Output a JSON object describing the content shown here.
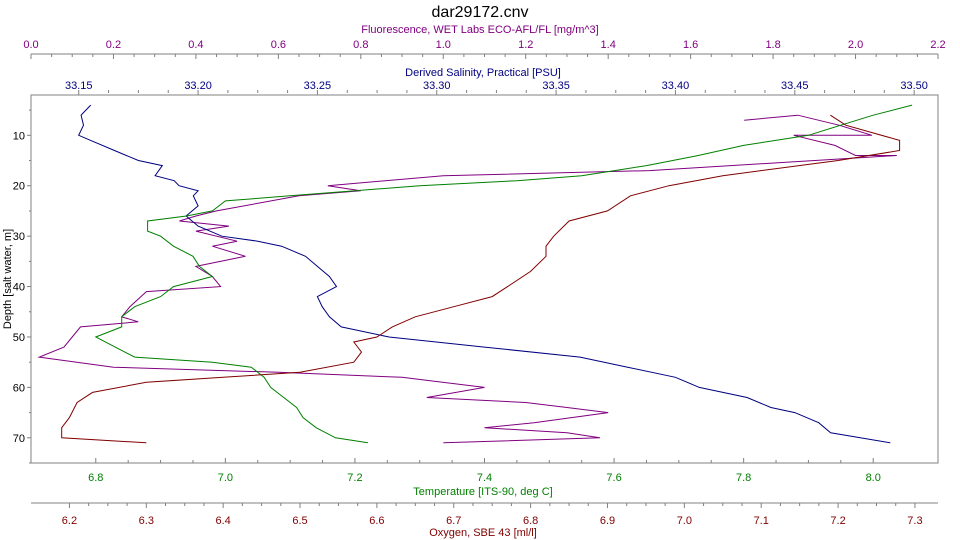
{
  "chart_data": {
    "type": "line",
    "title": "dar29172.cnv",
    "ylabel": "Depth [salt water, m]",
    "ylim": [
      75,
      2
    ],
    "yticks": [
      10,
      20,
      30,
      40,
      50,
      60,
      70
    ],
    "axes": {
      "fluorescence": {
        "label": "Fluorescence, WET Labs ECO-AFL/FL [mg/m^3]",
        "range": [
          0.0,
          2.2
        ],
        "ticks": [
          "0.0",
          "0.2",
          "0.4",
          "0.6",
          "0.8",
          "1.0",
          "1.2",
          "1.4",
          "1.6",
          "1.8",
          "2.0",
          "2.2"
        ],
        "color": "#800080"
      },
      "salinity": {
        "label": "Derived Salinity, Practical [PSU]",
        "range": [
          33.13,
          33.51
        ],
        "ticks": [
          "33.15",
          "33.20",
          "33.25",
          "33.30",
          "33.35",
          "33.40",
          "33.45",
          "33.50"
        ],
        "color": "#000080"
      },
      "temperature": {
        "label": "Temperature [ITS-90, deg C]",
        "range": [
          6.7,
          8.1
        ],
        "ticks": [
          "6.8",
          "7.0",
          "7.2",
          "7.4",
          "7.6",
          "7.8",
          "8.0"
        ],
        "color": "#008000"
      },
      "oxygen": {
        "label": "Oxygen, SBE 43 [ml/l]",
        "range": [
          6.15,
          7.33
        ],
        "ticks": [
          "6.2",
          "6.3",
          "6.4",
          "6.5",
          "6.6",
          "6.7",
          "6.8",
          "6.9",
          "7.0",
          "7.1",
          "7.2",
          "7.3"
        ],
        "color": "#800000"
      }
    },
    "series": [
      {
        "axis": "fluorescence",
        "color": "#800080",
        "points": [
          [
            1.73,
            7
          ],
          [
            1.86,
            6
          ],
          [
            1.96,
            8
          ],
          [
            2.04,
            10
          ],
          [
            1.85,
            10
          ],
          [
            1.95,
            12
          ],
          [
            2.0,
            14
          ],
          [
            2.1,
            14
          ],
          [
            1.5,
            17
          ],
          [
            1.0,
            18
          ],
          [
            0.72,
            20
          ],
          [
            0.8,
            21
          ],
          [
            0.65,
            22
          ],
          [
            0.45,
            25
          ],
          [
            0.4,
            26
          ],
          [
            0.36,
            27
          ],
          [
            0.48,
            28
          ],
          [
            0.4,
            29
          ],
          [
            0.5,
            31
          ],
          [
            0.44,
            32
          ],
          [
            0.52,
            34
          ],
          [
            0.4,
            36
          ],
          [
            0.44,
            38
          ],
          [
            0.46,
            40
          ],
          [
            0.28,
            41
          ],
          [
            0.24,
            44
          ],
          [
            0.22,
            46
          ],
          [
            0.26,
            47
          ],
          [
            0.12,
            48
          ],
          [
            0.1,
            50
          ],
          [
            0.08,
            52
          ],
          [
            0.02,
            54
          ],
          [
            0.2,
            56
          ],
          [
            0.6,
            57
          ],
          [
            0.9,
            58
          ],
          [
            1.1,
            60
          ],
          [
            0.96,
            62
          ],
          [
            1.2,
            63
          ],
          [
            1.3,
            64
          ],
          [
            1.4,
            65
          ],
          [
            1.22,
            67
          ],
          [
            1.1,
            68
          ],
          [
            1.3,
            69
          ],
          [
            1.38,
            70
          ],
          [
            1.0,
            71
          ]
        ]
      },
      {
        "axis": "salinity",
        "color": "#000080",
        "points": [
          [
            33.155,
            4
          ],
          [
            33.151,
            6
          ],
          [
            33.152,
            8
          ],
          [
            33.15,
            10
          ],
          [
            33.155,
            11
          ],
          [
            33.165,
            13
          ],
          [
            33.175,
            15
          ],
          [
            33.185,
            16
          ],
          [
            33.182,
            18
          ],
          [
            33.19,
            19
          ],
          [
            33.192,
            20
          ],
          [
            33.2,
            21
          ],
          [
            33.198,
            22
          ],
          [
            33.2,
            24
          ],
          [
            33.195,
            26
          ],
          [
            33.2,
            28
          ],
          [
            33.21,
            30
          ],
          [
            33.225,
            31
          ],
          [
            33.235,
            32
          ],
          [
            33.245,
            34
          ],
          [
            33.25,
            36
          ],
          [
            33.255,
            38
          ],
          [
            33.258,
            40
          ],
          [
            33.25,
            42
          ],
          [
            33.252,
            44
          ],
          [
            33.255,
            46
          ],
          [
            33.26,
            48
          ],
          [
            33.28,
            50
          ],
          [
            33.32,
            52
          ],
          [
            33.36,
            54
          ],
          [
            33.38,
            56
          ],
          [
            33.4,
            58
          ],
          [
            33.41,
            60
          ],
          [
            33.43,
            62
          ],
          [
            33.44,
            64
          ],
          [
            33.45,
            65
          ],
          [
            33.46,
            67
          ],
          [
            33.465,
            69
          ],
          [
            33.49,
            71
          ]
        ]
      },
      {
        "axis": "temperature",
        "color": "#008000",
        "points": [
          [
            8.06,
            4
          ],
          [
            8.0,
            6
          ],
          [
            7.95,
            8
          ],
          [
            7.9,
            10
          ],
          [
            7.8,
            12
          ],
          [
            7.73,
            14
          ],
          [
            7.65,
            16
          ],
          [
            7.55,
            18
          ],
          [
            7.45,
            19
          ],
          [
            7.3,
            20
          ],
          [
            7.2,
            21
          ],
          [
            7.1,
            22
          ],
          [
            7.0,
            23
          ],
          [
            6.98,
            25
          ],
          [
            6.94,
            26
          ],
          [
            6.88,
            27
          ],
          [
            6.88,
            29
          ],
          [
            6.9,
            30
          ],
          [
            6.92,
            32
          ],
          [
            6.95,
            34
          ],
          [
            6.96,
            36
          ],
          [
            6.98,
            38
          ],
          [
            6.92,
            40
          ],
          [
            6.9,
            42
          ],
          [
            6.86,
            44
          ],
          [
            6.84,
            46
          ],
          [
            6.84,
            48
          ],
          [
            6.8,
            50
          ],
          [
            6.83,
            52
          ],
          [
            6.86,
            54
          ],
          [
            6.98,
            55
          ],
          [
            7.04,
            56
          ],
          [
            7.06,
            58
          ],
          [
            7.07,
            60
          ],
          [
            7.09,
            62
          ],
          [
            7.11,
            64
          ],
          [
            7.12,
            66
          ],
          [
            7.14,
            68
          ],
          [
            7.17,
            70
          ],
          [
            7.22,
            71
          ]
        ]
      },
      {
        "axis": "oxygen",
        "color": "#800000",
        "points": [
          [
            7.19,
            6
          ],
          [
            7.21,
            8
          ],
          [
            7.28,
            11
          ],
          [
            7.28,
            13
          ],
          [
            7.2,
            15
          ],
          [
            7.05,
            18
          ],
          [
            6.98,
            20
          ],
          [
            6.93,
            22
          ],
          [
            6.9,
            25
          ],
          [
            6.85,
            27
          ],
          [
            6.83,
            30
          ],
          [
            6.82,
            32
          ],
          [
            6.82,
            34
          ],
          [
            6.8,
            37
          ],
          [
            6.77,
            40
          ],
          [
            6.75,
            42
          ],
          [
            6.7,
            44
          ],
          [
            6.65,
            46
          ],
          [
            6.62,
            48
          ],
          [
            6.6,
            50
          ],
          [
            6.57,
            51
          ],
          [
            6.58,
            53
          ],
          [
            6.57,
            55
          ],
          [
            6.5,
            57
          ],
          [
            6.4,
            58
          ],
          [
            6.3,
            59
          ],
          [
            6.23,
            61
          ],
          [
            6.21,
            63
          ],
          [
            6.2,
            66
          ],
          [
            6.19,
            68
          ],
          [
            6.19,
            70
          ],
          [
            6.3,
            71
          ]
        ]
      }
    ]
  }
}
